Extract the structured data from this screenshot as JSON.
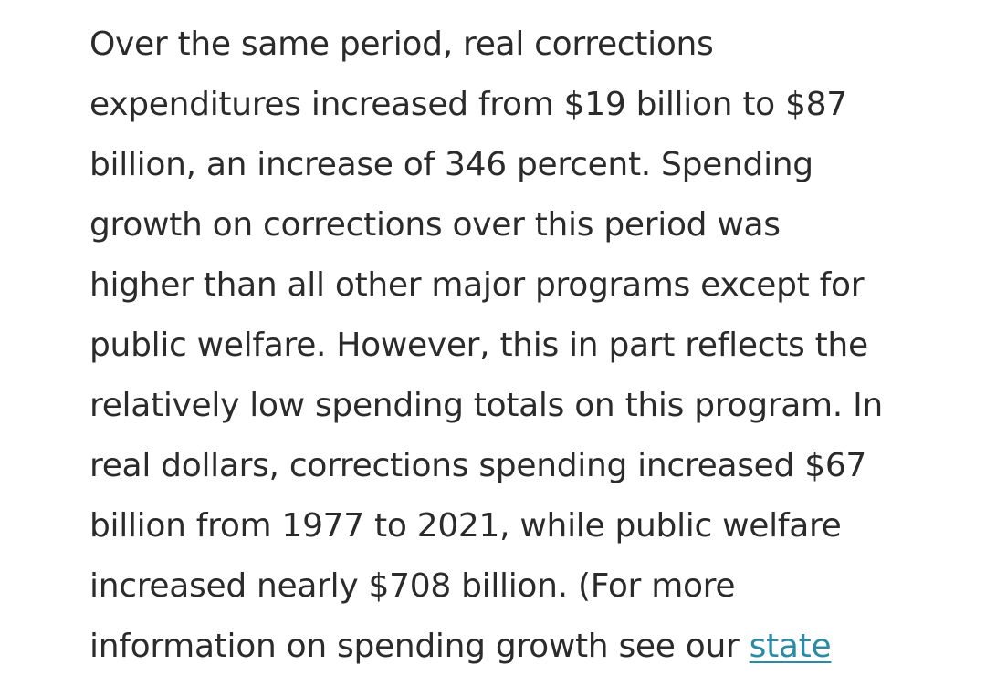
{
  "article": {
    "lines": [
      "Over the same period, real corrections",
      "expenditures increased from $19 billion to $87",
      "billion, an increase of 346 percent. Spending",
      "growth on corrections over this period was",
      "higher than all other major programs except for",
      "public welfare. However, this in part reflects the",
      "relatively low spending totals on this program. In",
      "real dollars, corrections spending increased $67",
      "billion from 1977 to 2021, while public welfare",
      "increased nearly $708 billion. (For more"
    ],
    "last_line_text": "information on spending growth see our ",
    "link_text": "state"
  },
  "colors": {
    "text": "#2b2b2b",
    "link": "#2b8aa6",
    "background": "#ffffff"
  }
}
